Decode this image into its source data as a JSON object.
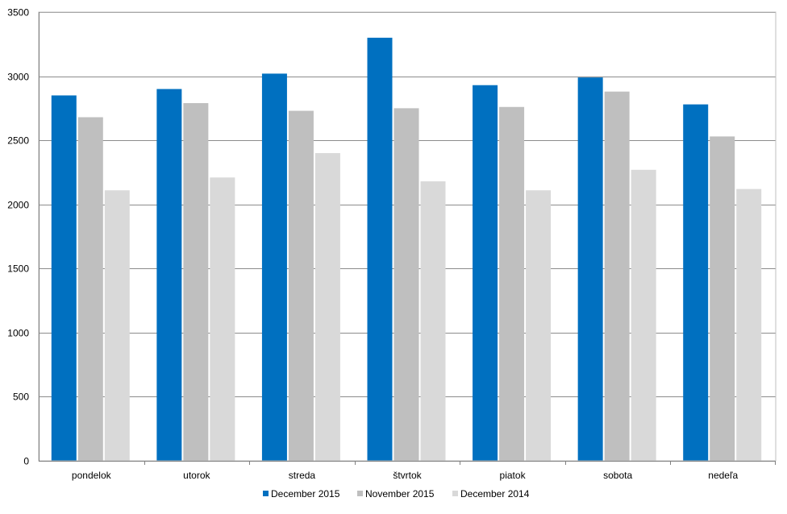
{
  "chart_data": {
    "type": "bar",
    "categories": [
      "pondelok",
      "utorok",
      "streda",
      "štvrtok",
      "piatok",
      "sobota",
      "nedeľa"
    ],
    "series": [
      {
        "name": "December 2015",
        "color": "#0070c0",
        "values": [
          2850,
          2900,
          3020,
          3300,
          2930,
          2990,
          2780
        ]
      },
      {
        "name": "November 2015",
        "color": "#bfbfbf",
        "values": [
          2680,
          2790,
          2730,
          2750,
          2760,
          2880,
          2530
        ]
      },
      {
        "name": "December 2014",
        "color": "#d9d9d9",
        "values": [
          2110,
          2210,
          2400,
          2180,
          2110,
          2270,
          2120
        ]
      }
    ],
    "ylim": [
      0,
      3500
    ],
    "yticks": [
      0,
      500,
      1000,
      1500,
      2000,
      2500,
      3000,
      3500
    ],
    "grid": true,
    "legend_position": "bottom"
  }
}
